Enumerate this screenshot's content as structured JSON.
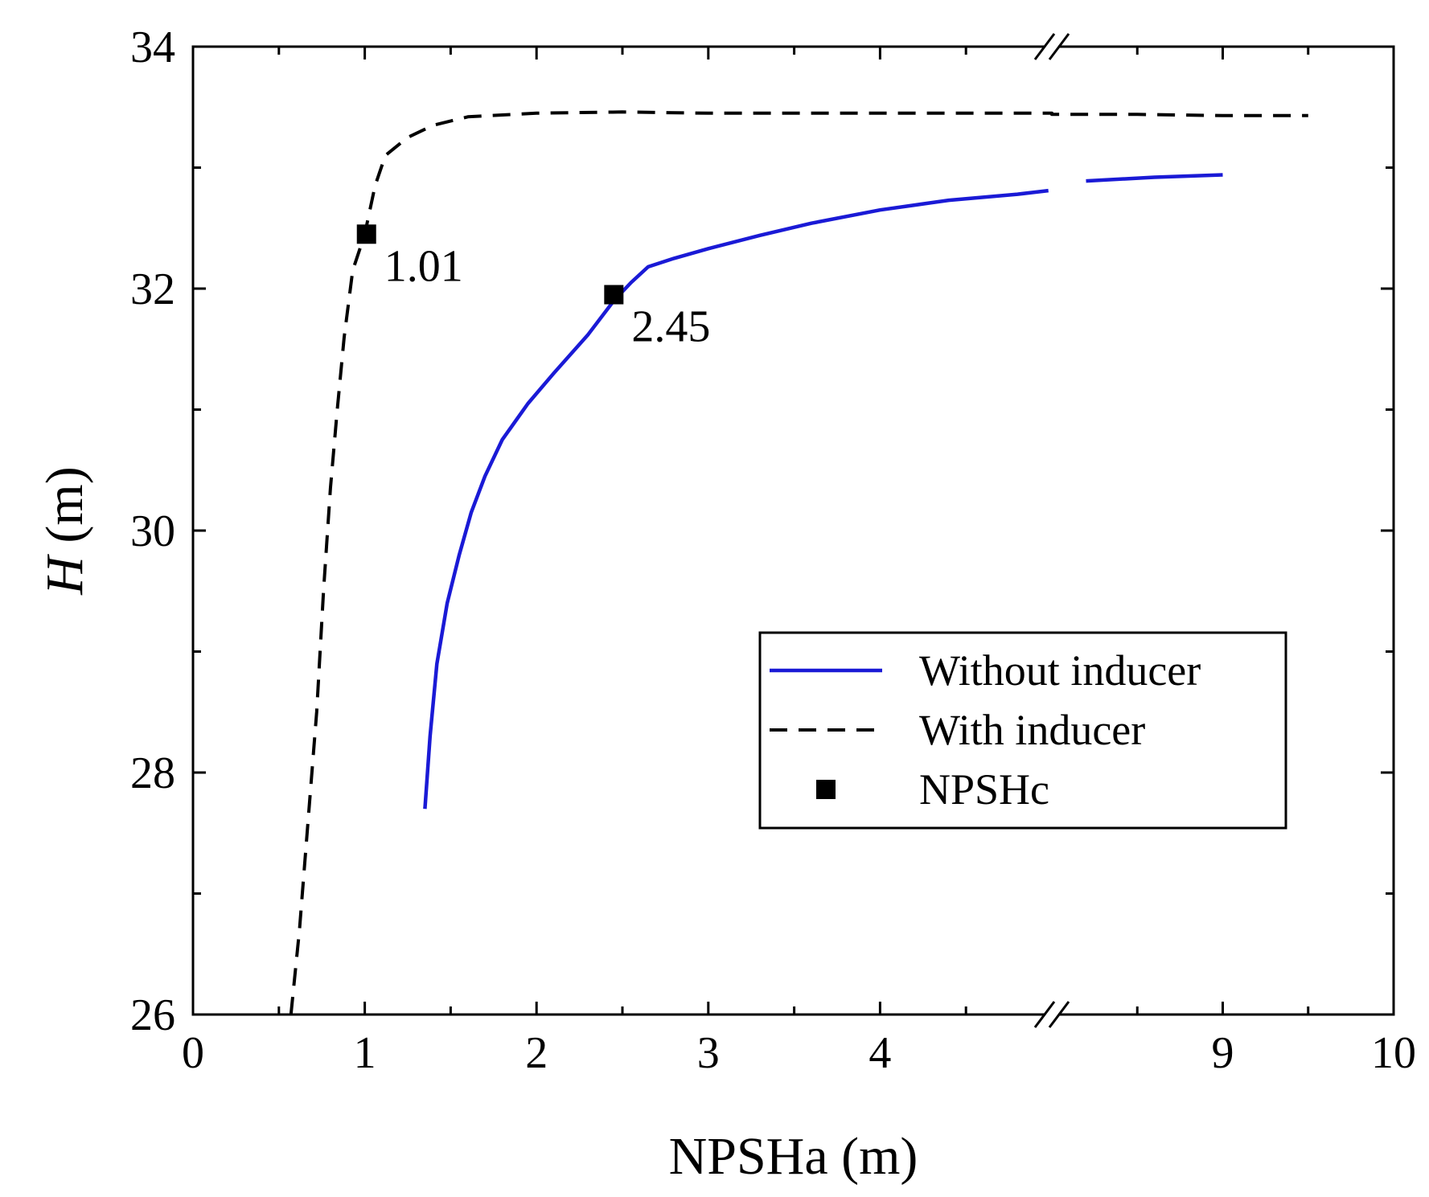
{
  "chart_data": {
    "type": "line",
    "xlabel": "NPSHa (m)",
    "ylabel": {
      "italic": "H",
      "unit": " (m)"
    },
    "ylim": [
      26,
      34
    ],
    "y_ticks": [
      26,
      28,
      30,
      32,
      34
    ],
    "x_axis_break": {
      "low_range": [
        0,
        5
      ],
      "high_range": [
        8,
        10
      ]
    },
    "x_tick_labels": [
      {
        "value": 0,
        "label": "0"
      },
      {
        "value": 1,
        "label": "1"
      },
      {
        "value": 2,
        "label": "2"
      },
      {
        "value": 3,
        "label": "3"
      },
      {
        "value": 4,
        "label": "4"
      },
      {
        "value": 9,
        "label": "9"
      },
      {
        "value": 10,
        "label": "10"
      }
    ],
    "series": [
      {
        "name": "Without inducer",
        "style": "solid",
        "color": "#1a1ad6",
        "points": [
          [
            1.35,
            27.7
          ],
          [
            1.38,
            28.3
          ],
          [
            1.42,
            28.9
          ],
          [
            1.48,
            29.4
          ],
          [
            1.55,
            29.8
          ],
          [
            1.62,
            30.15
          ],
          [
            1.7,
            30.45
          ],
          [
            1.8,
            30.75
          ],
          [
            1.95,
            31.05
          ],
          [
            2.1,
            31.3
          ],
          [
            2.3,
            31.62
          ],
          [
            2.45,
            31.9
          ],
          [
            2.55,
            32.05
          ],
          [
            2.65,
            32.18
          ],
          [
            2.8,
            32.25
          ],
          [
            3.0,
            32.33
          ],
          [
            3.3,
            32.44
          ],
          [
            3.6,
            32.54
          ],
          [
            4.0,
            32.65
          ],
          [
            4.4,
            32.73
          ],
          [
            4.8,
            32.78
          ],
          [
            4.98,
            32.81
          ],
          [
            8.2,
            32.89
          ],
          [
            8.6,
            32.92
          ],
          [
            9.0,
            32.94
          ]
        ]
      },
      {
        "name": "With inducer",
        "style": "dashed",
        "color": "#000000",
        "points": [
          [
            0.57,
            26.0
          ],
          [
            0.62,
            26.7
          ],
          [
            0.67,
            27.6
          ],
          [
            0.72,
            28.5
          ],
          [
            0.76,
            29.5
          ],
          [
            0.8,
            30.35
          ],
          [
            0.84,
            31.0
          ],
          [
            0.88,
            31.6
          ],
          [
            0.93,
            32.15
          ],
          [
            1.0,
            32.45
          ],
          [
            1.06,
            32.85
          ],
          [
            1.12,
            33.1
          ],
          [
            1.25,
            33.25
          ],
          [
            1.4,
            33.35
          ],
          [
            1.6,
            33.42
          ],
          [
            2.0,
            33.45
          ],
          [
            2.5,
            33.46
          ],
          [
            3.0,
            33.45
          ],
          [
            4.0,
            33.45
          ],
          [
            5.0,
            33.45
          ],
          [
            8.0,
            33.44
          ],
          [
            8.5,
            33.44
          ],
          [
            9.0,
            33.43
          ],
          [
            9.5,
            33.43
          ]
        ]
      }
    ],
    "markers": [
      {
        "name": "NPSHc",
        "x": 1.01,
        "y": 32.45,
        "label": "1.01"
      },
      {
        "name": "NPSHc",
        "x": 2.45,
        "y": 31.95,
        "label": "2.45"
      }
    ],
    "legend": {
      "position": "lower-right",
      "entries": [
        {
          "label": "Without inducer",
          "kind": "solid-line"
        },
        {
          "label": "With inducer",
          "kind": "dashed-line"
        },
        {
          "label": "NPSHc",
          "kind": "square-marker"
        }
      ]
    },
    "grid": false
  }
}
